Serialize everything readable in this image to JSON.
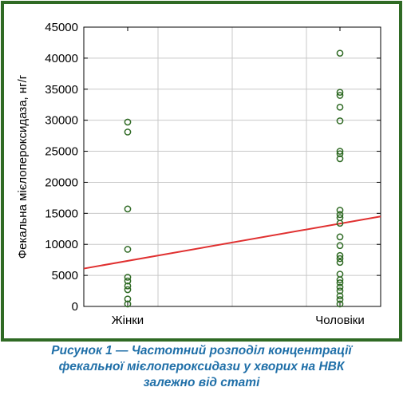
{
  "chart_data": {
    "type": "scatter",
    "ylabel": "Фекальна мієлопероксидаза, нг/г",
    "xlabel": "",
    "categories": [
      "Жінки",
      "Чоловіки"
    ],
    "ylim": [
      0,
      45000
    ],
    "yticks": [
      0,
      5000,
      10000,
      15000,
      20000,
      25000,
      30000,
      35000,
      40000,
      45000
    ],
    "grid": true,
    "points": {
      "Жінки": [
        29700,
        28100,
        15700,
        9200,
        4700,
        4100,
        3300,
        2700,
        1200,
        400
      ],
      "Чоловіки": [
        40800,
        34500,
        34000,
        32100,
        29900,
        25000,
        24600,
        23800,
        15500,
        14800,
        14300,
        13400,
        11200,
        9800,
        8200,
        7700,
        7100,
        5200,
        4300,
        3800,
        3100,
        2500,
        1700,
        1100,
        400
      ]
    },
    "trend_line": {
      "start_y": 6100,
      "end_y": 14500
    },
    "colors": {
      "points": "#2f6a24",
      "trend": "#e03030",
      "frame": "#2f6a24",
      "caption": "#1f6fa8"
    }
  },
  "caption": {
    "lines": [
      "Рисунок 1 — Частотний розподіл концентрації",
      "фекальної мієлопероксидази у хворих на НВК",
      "залежно від статі"
    ]
  }
}
